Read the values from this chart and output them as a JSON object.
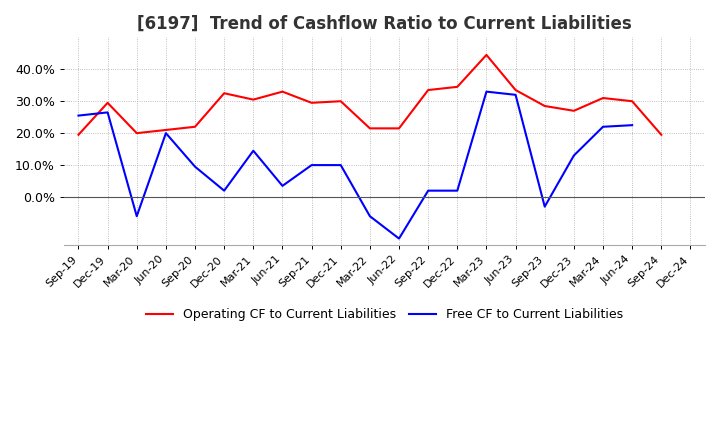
{
  "title": "[6197]  Trend of Cashflow Ratio to Current Liabilities",
  "x_labels": [
    "Sep-19",
    "Dec-19",
    "Mar-20",
    "Jun-20",
    "Sep-20",
    "Dec-20",
    "Mar-21",
    "Jun-21",
    "Sep-21",
    "Dec-21",
    "Mar-22",
    "Jun-22",
    "Sep-22",
    "Dec-22",
    "Mar-23",
    "Jun-23",
    "Sep-23",
    "Dec-23",
    "Mar-24",
    "Jun-24",
    "Sep-24",
    "Dec-24"
  ],
  "operating_cf": [
    0.195,
    0.295,
    0.2,
    0.21,
    0.22,
    0.325,
    0.305,
    0.33,
    0.295,
    0.3,
    0.215,
    0.215,
    0.335,
    0.345,
    0.445,
    0.335,
    0.285,
    0.27,
    0.31,
    0.3,
    0.195,
    null
  ],
  "free_cf": [
    0.255,
    0.265,
    -0.06,
    0.2,
    0.095,
    0.02,
    0.145,
    0.035,
    0.1,
    0.1,
    -0.06,
    -0.13,
    0.02,
    0.02,
    0.33,
    0.32,
    -0.03,
    0.13,
    0.22,
    0.225,
    null,
    null
  ],
  "operating_color": "#ff0000",
  "free_color": "#0000ff",
  "ylim": [
    -0.15,
    0.5
  ],
  "yticks": [
    0.0,
    0.1,
    0.2,
    0.3,
    0.4
  ],
  "grid_color": "#aaaaaa",
  "background_color": "#ffffff",
  "title_fontsize": 12,
  "legend_labels": [
    "Operating CF to Current Liabilities",
    "Free CF to Current Liabilities"
  ]
}
